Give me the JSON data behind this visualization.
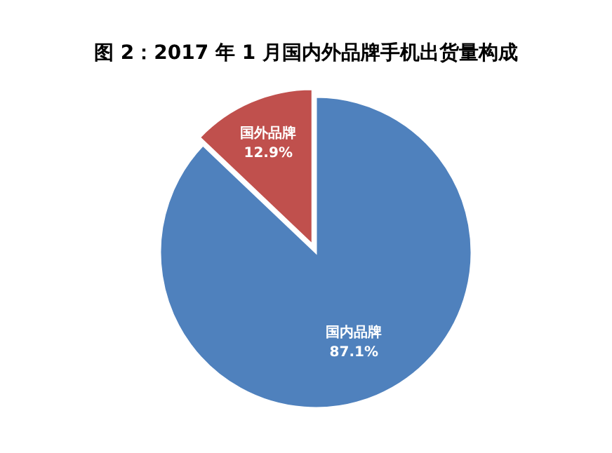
{
  "chart_data": {
    "type": "pie",
    "title": "图 2：2017 年 1 月国内外品牌手机出货量构成",
    "categories": [
      "国内品牌",
      "国外品牌"
    ],
    "values": [
      87.1,
      12.9
    ],
    "colors": [
      "#4f81bd",
      "#c0504d"
    ],
    "value_labels": [
      "87.1%",
      "12.9%"
    ]
  }
}
